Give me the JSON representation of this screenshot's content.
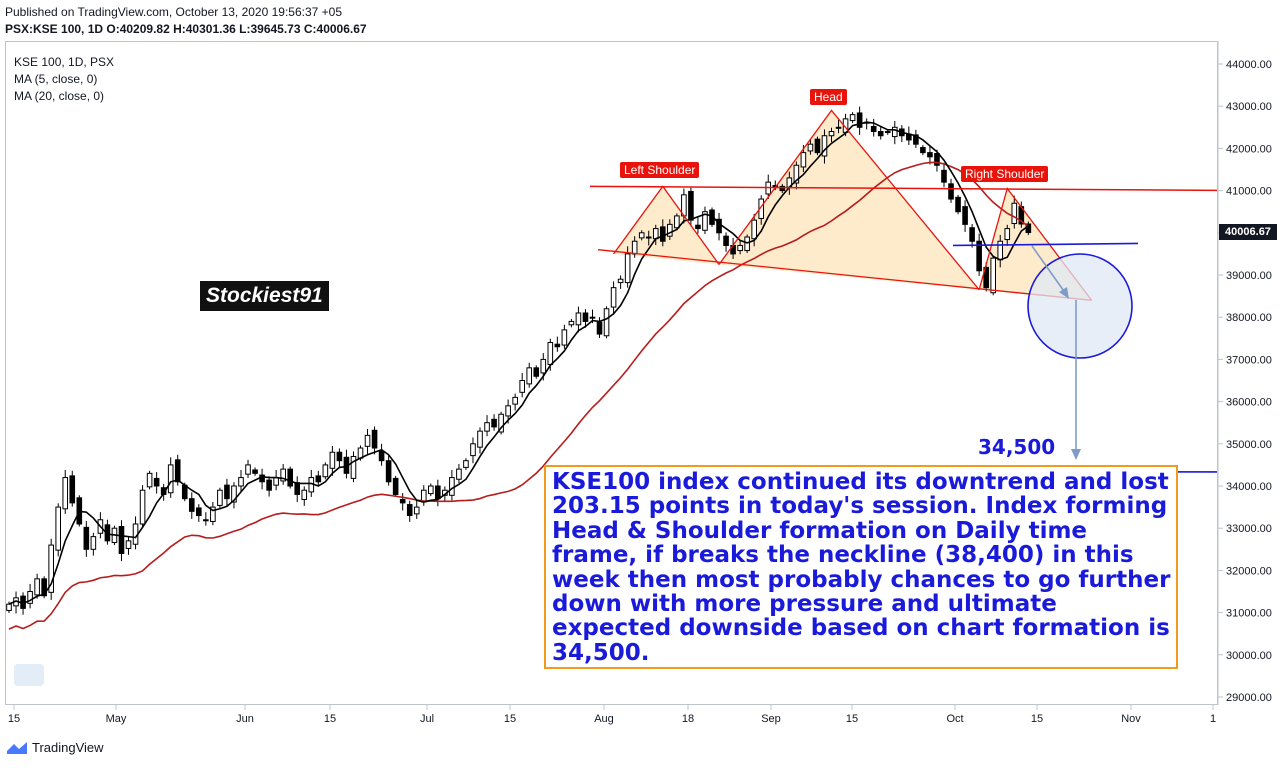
{
  "header": {
    "published": "Published on TradingView.com, October 13, 2020 19:56:37 +05",
    "ohlc": "PSX:KSE 100, 1D  O:40209.82 H:40301.36 L:39645.73 C:40006.67"
  },
  "legend": {
    "symbol": "KSE 100, 1D, PSX",
    "ma_fast": "MA (5, close, 0)",
    "ma_slow": "MA (20, close, 0)"
  },
  "watermark": "Stockiest91",
  "patterns": {
    "left_shoulder": "Left Shoulder",
    "head": "Head",
    "right_shoulder": "Right Shoulder"
  },
  "target_label": "34,500",
  "note": "KSE100 index continued its downtrend and lost 203.15 points in today's session. Index forming Head & Shoulder formation on Daily time frame, if breaks the neckline (38,400) in this week then most probably chances to go further down with more pressure and ultimate expected downside based on chart formation is 34,500.",
  "last_price": "40006.67",
  "footer": {
    "brand": "TradingView"
  },
  "colors": {
    "ma_fast": "#000000",
    "ma_slow": "#b71c1c",
    "pattern": "#e8140c",
    "pattern_fill": "#fde9c6",
    "target_line": "#1a1adb",
    "note_text": "#1a1adb",
    "note_border": "#f09a1e"
  },
  "chart_data": {
    "type": "candlestick",
    "x_ticks": [
      "15",
      "May",
      "Jun",
      "15",
      "Jul",
      "15",
      "Aug",
      "18",
      "Sep",
      "15",
      "Oct",
      "15",
      "Nov",
      "1"
    ],
    "y_ticks": [
      "44000.00",
      "43000.00",
      "42000.00",
      "41000.00",
      "40000.00",
      "39000.00",
      "38000.00",
      "37000.00",
      "36000.00",
      "35000.00",
      "34000.00",
      "33000.00",
      "32000.00",
      "31000.00",
      "30000.00",
      "29000.00"
    ],
    "y_range": [
      28700,
      44400
    ],
    "close_series": [
      31200,
      31350,
      31100,
      31500,
      31800,
      31400,
      32600,
      33500,
      34200,
      33600,
      33100,
      32500,
      32800,
      33200,
      32700,
      33000,
      32400,
      32700,
      33100,
      33900,
      34300,
      34000,
      33800,
      34500,
      34100,
      33700,
      33400,
      33300,
      33200,
      33500,
      33900,
      33700,
      34000,
      34200,
      34500,
      34300,
      34100,
      33900,
      34200,
      34400,
      34000,
      33800,
      33900,
      34200,
      34100,
      34500,
      34800,
      34600,
      34300,
      34700,
      34900,
      35200,
      34900,
      34600,
      34100,
      33800,
      33600,
      33300,
      33500,
      33900,
      34000,
      33700,
      33900,
      34200,
      34400,
      34600,
      35000,
      35300,
      35500,
      35400,
      35700,
      35900,
      36100,
      36500,
      36800,
      36600,
      37000,
      37400,
      37300,
      37700,
      37900,
      38100,
      37900,
      38000,
      37600,
      38200,
      38700,
      38900,
      39500,
      39800,
      40000,
      39900,
      40100,
      39800,
      40200,
      40400,
      40900,
      40300,
      40100,
      40500,
      40200,
      40000,
      39700,
      39500,
      39700,
      39900,
      40300,
      40800,
      41200,
      41100,
      41000,
      41300,
      41600,
      41900,
      42100,
      41900,
      42300,
      42400,
      42500,
      42700,
      42800,
      42500,
      42600,
      42400,
      42300,
      42400,
      42500,
      42300,
      42200,
      42100,
      41900,
      41800,
      41600,
      41200,
      40800,
      40500,
      40200,
      39800,
      39100,
      38700,
      39400,
      39800,
      40100,
      40700,
      40209,
      40006
    ],
    "ma_fast": {
      "name": "MA (5, close, 0)"
    },
    "ma_slow": {
      "name": "MA (20, close, 0)"
    },
    "head_and_shoulders": {
      "left_shoulder": 41100,
      "head": 42900,
      "right_shoulder": 41050,
      "neckline_from": 39600,
      "neckline_to": 38400,
      "resistance": 41100,
      "support": 39700,
      "target": 34500
    },
    "last_close": 40006.67
  }
}
